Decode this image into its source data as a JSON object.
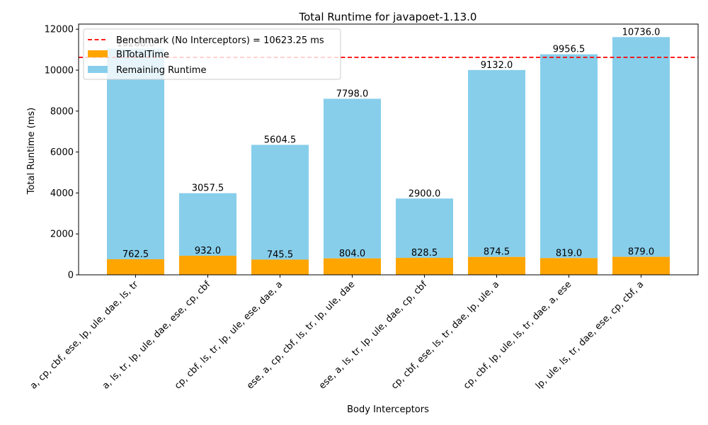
{
  "chart_data": {
    "type": "bar",
    "title": "Total Runtime for javapoet-1.13.0",
    "xlabel": "Body Interceptors",
    "ylabel": "Total Runtime (ms)",
    "ylim": [
      0,
      12250
    ],
    "yticks": [
      0,
      2000,
      4000,
      6000,
      8000,
      10000,
      12000
    ],
    "grid": false,
    "legend_position": "top-left",
    "categories": [
      "a, cp, cbf, ese, lp, ule, dae, ls, tr",
      "a, ls, tr, lp, ule, dae, ese, cp, cbf",
      "cp, cbf, ls, tr, lp, ule, ese, dae, a",
      "ese, a, cp, cbf, ls, tr, lp, ule, dae",
      "ese, a, ls, tr, lp, ule, dae, cp, cbf",
      "cp, cbf, ese, ls, tr, dae, lp, ule, a",
      "cp, cbf, lp, ule, ls, tr, dae, a, ese",
      "lp, ule, ls, tr, dae, ese, cp, cbf, a"
    ],
    "series": [
      {
        "name": "BITotalTime",
        "color": "#ffa500",
        "values": [
          762.5,
          932.0,
          745.5,
          804.0,
          828.5,
          874.5,
          819.0,
          879.0
        ],
        "labels": [
          "762.5",
          "932.0",
          "745.5",
          "804.0",
          "828.5",
          "874.5",
          "819.0",
          "879.0"
        ]
      },
      {
        "name": "Remaining Runtime",
        "color": "#87ceeb",
        "values": [
          10288.0,
          3057.5,
          5604.5,
          7798.0,
          2900.0,
          9132.0,
          9956.5,
          10736.0
        ],
        "labels": [
          "10288.0",
          "3057.5",
          "5604.5",
          "7798.0",
          "2900.0",
          "9132.0",
          "9956.5",
          "10736.0"
        ]
      }
    ],
    "benchmark": {
      "label": "Benchmark (No Interceptors) = 10623.25 ms",
      "value": 10623.25,
      "color": "#ff0000"
    }
  }
}
